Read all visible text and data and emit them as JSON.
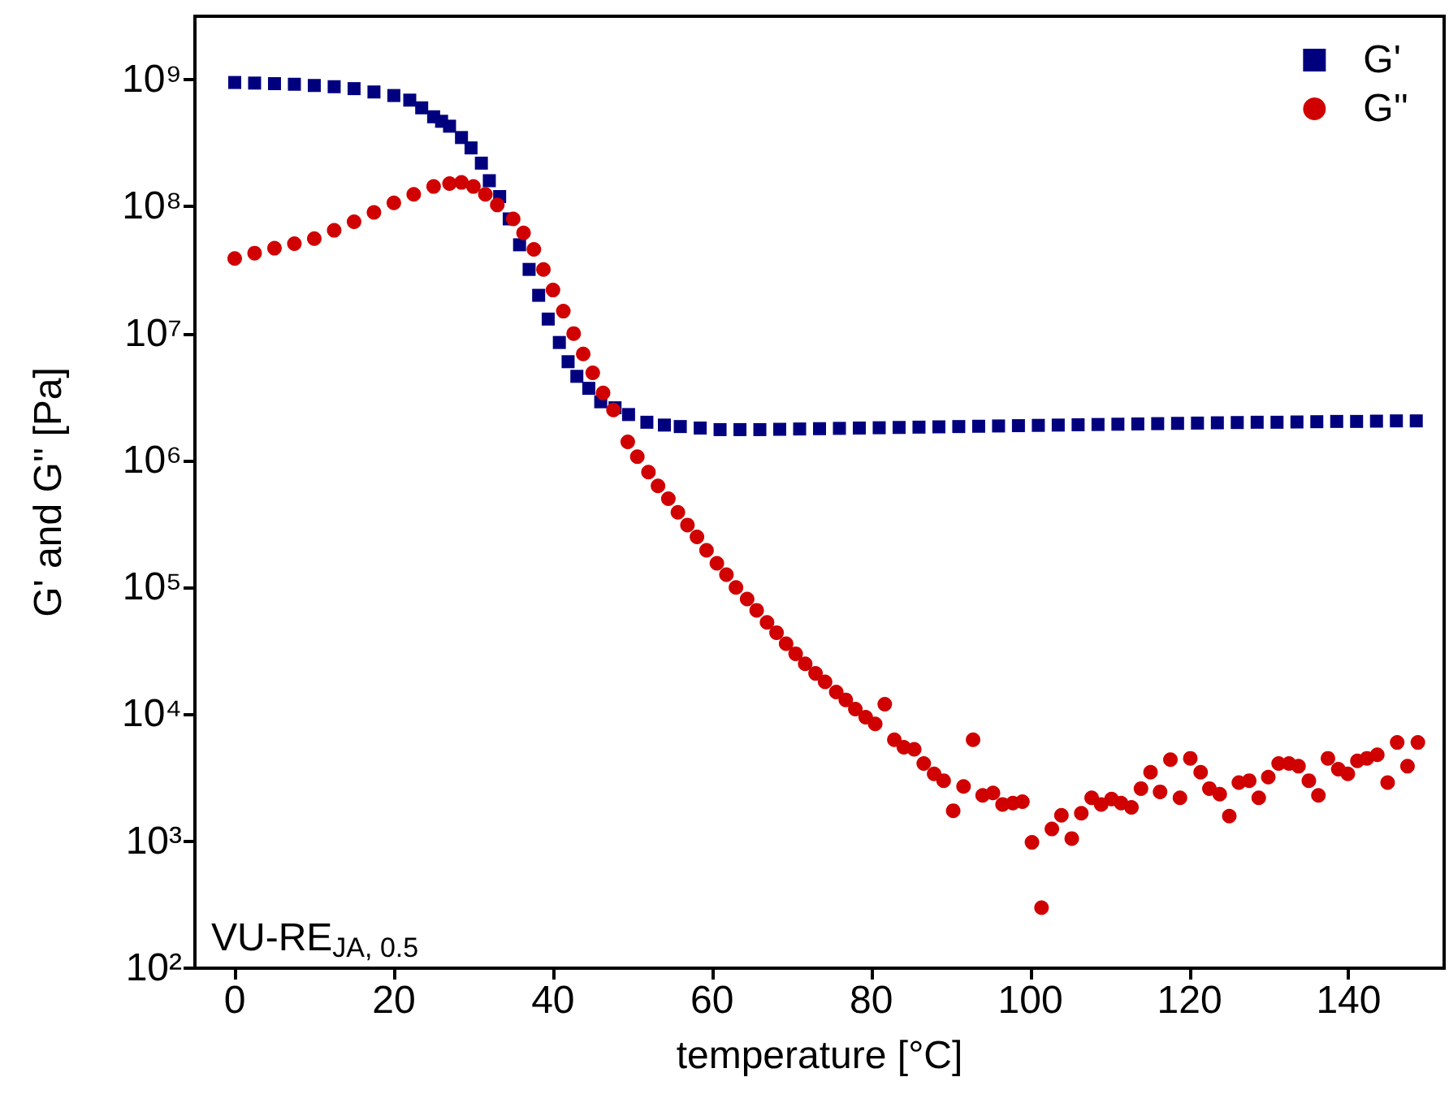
{
  "chart_data": {
    "type": "scatter",
    "xlabel": "temperature [°C]",
    "ylabel": "G' and G'' [Pa]",
    "annotations": [
      "VU-RE$_{JA, 0.5}$"
    ],
    "log": "y",
    "grid": false,
    "legend": "top right",
    "xlim": [
      -5,
      152
    ],
    "xticks": [
      0,
      20,
      40,
      60,
      80,
      100,
      120,
      140
    ],
    "ylim": [
      100,
      3160000000
    ],
    "yticks": [
      {
        "value": 100,
        "label": "10²"
      },
      {
        "value": 1000,
        "label": "10³"
      },
      {
        "value": 10000,
        "label": "10⁴"
      },
      {
        "value": 100000,
        "label": "10⁵"
      },
      {
        "value": 1000000,
        "label": "10⁶"
      },
      {
        "value": 10000000,
        "label": "10⁷"
      },
      {
        "value": 100000000,
        "label": "10⁸"
      },
      {
        "value": 1000000000,
        "label": "10⁹"
      }
    ],
    "series": [
      {
        "name": "G'",
        "color": "#00007f",
        "marker": "square",
        "x": [
          0,
          2.5,
          5,
          7.5,
          10,
          12.5,
          15,
          17.5,
          20,
          22,
          23.5,
          25,
          26,
          27,
          28.5,
          29.7,
          31,
          32,
          33.3,
          34.5,
          35.8,
          37,
          38.2,
          39.4,
          40.8,
          41.9,
          43,
          44.5,
          46,
          47.8,
          49.5,
          51.8,
          54,
          56,
          58.5,
          61,
          63.5,
          66,
          68.5,
          71,
          73.5,
          76,
          78.5,
          81,
          83.5,
          86,
          88.5,
          91,
          93.5,
          96,
          98.5,
          101,
          103.5,
          106,
          108.5,
          111,
          113.5,
          116,
          118.5,
          121,
          123.5,
          126,
          128.5,
          131,
          133.5,
          136,
          138.5,
          141,
          143.5,
          146,
          148.5
        ],
        "values": [
          950000000,
          940000000,
          930000000,
          920000000,
          900000000,
          880000000,
          850000000,
          800000000,
          750000000,
          690000000,
          600000000,
          510000000,
          470000000,
          430000000,
          350000000,
          290000000,
          220000000,
          160000000,
          120000000,
          80000000,
          50000000,
          32000000,
          20000000,
          13000000,
          8500000,
          6000000,
          4600000,
          3700000,
          2900000,
          2600000,
          2300000,
          2000000,
          1900000,
          1850000,
          1800000,
          1750000,
          1750000,
          1750000,
          1760000,
          1770000,
          1780000,
          1790000,
          1800000,
          1810000,
          1820000,
          1830000,
          1840000,
          1850000,
          1860000,
          1870000,
          1880000,
          1890000,
          1900000,
          1910000,
          1920000,
          1930000,
          1940000,
          1950000,
          1960000,
          1970000,
          1980000,
          1990000,
          2000000,
          2000000,
          2010000,
          2020000,
          2030000,
          2030000,
          2040000,
          2050000,
          2050000
        ]
      },
      {
        "name": "G''",
        "color": "#d00000",
        "marker": "circle",
        "x": [
          0,
          2.5,
          5,
          7.5,
          10,
          12.5,
          15,
          17.5,
          20,
          22.5,
          25,
          27,
          28.5,
          30,
          31.5,
          33,
          35,
          36.3,
          37.6,
          38.8,
          40,
          41.3,
          42.6,
          43.8,
          45,
          46.3,
          47.6,
          49.4,
          50.6,
          52,
          53.2,
          54.5,
          55.7,
          56.9,
          58.1,
          59.3,
          60.6,
          61.8,
          63,
          64.4,
          65.6,
          66.9,
          68.1,
          69.3,
          70.5,
          71.7,
          73,
          74.2,
          75.6,
          76.8,
          78,
          79.3,
          80.5,
          81.7,
          82.9,
          84.1,
          85.4,
          86.6,
          87.9,
          89.1,
          90.3,
          91.6,
          92.8,
          94,
          95.3,
          96.5,
          97.8,
          99,
          100.2,
          101.4,
          102.7,
          103.9,
          105.2,
          106.4,
          107.7,
          108.9,
          110.2,
          111.4,
          112.7,
          113.9,
          115.1,
          116.3,
          117.6,
          118.8,
          120.1,
          121.4,
          122.5,
          123.8,
          125,
          126.2,
          127.5,
          128.7,
          129.9,
          131.2,
          132.5,
          133.7,
          135,
          136.2,
          137.4,
          138.7,
          139.9,
          141.1,
          142.3,
          143.6,
          144.9,
          146.1,
          147.4,
          148.7
        ],
        "values": [
          39000000,
          43000000,
          47000000,
          51000000,
          56000000,
          65000000,
          76000000,
          90000000,
          107000000,
          125000000,
          144000000,
          152000000,
          155000000,
          144000000,
          125000000,
          103000000,
          80000000,
          62000000,
          46000000,
          32000000,
          22000000,
          15000000,
          10000000,
          6900000,
          4900000,
          3400000,
          2500000,
          1400000,
          1070000,
          810000,
          630000,
          500000,
          390000,
          310000,
          250000,
          196000,
          155000,
          126000,
          100000,
          81000,
          66000,
          53000,
          44000,
          36000,
          30000,
          25000,
          21000,
          18000,
          15000,
          13000,
          11000,
          9500,
          8400,
          12000,
          6300,
          5500,
          5300,
          4100,
          3400,
          3000,
          1740,
          2700,
          6300,
          2300,
          2400,
          1950,
          2000,
          2050,
          980,
          300,
          1250,
          1600,
          1050,
          1660,
          2200,
          1950,
          2150,
          2000,
          1850,
          2600,
          3500,
          2450,
          4400,
          2200,
          4500,
          3500,
          2600,
          2350,
          1580,
          2900,
          3000,
          2200,
          3200,
          4100,
          4100,
          3900,
          3000,
          2300,
          4500,
          3700,
          3400,
          4300,
          4500,
          4800,
          2900,
          6000,
          3900,
          6000
        ]
      }
    ]
  }
}
